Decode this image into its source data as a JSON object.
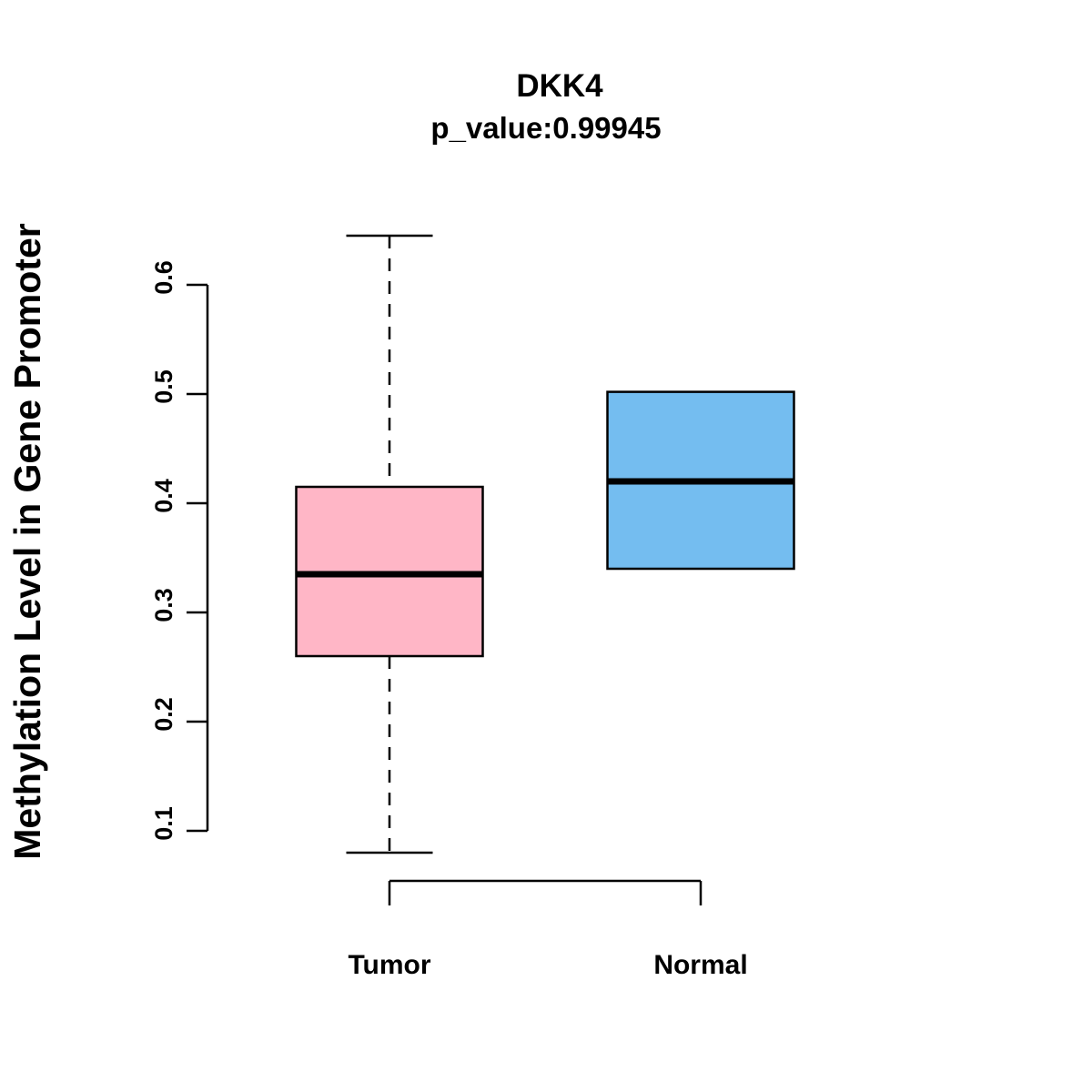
{
  "chart_data": {
    "type": "boxplot",
    "title": "DKK4",
    "subtitle": "p_value:0.99945",
    "ylabel": "Methylation Level in Gene Promoter",
    "categories": [
      "Tumor",
      "Normal"
    ],
    "series": [
      {
        "name": "Tumor",
        "color": "#FFB6C6",
        "whisker_low": 0.08,
        "q1": 0.26,
        "median": 0.335,
        "q3": 0.415,
        "whisker_high": 0.645
      },
      {
        "name": "Normal",
        "color": "#74BDF0",
        "whisker_low": 0.34,
        "q1": 0.34,
        "median": 0.42,
        "q3": 0.502,
        "whisker_high": 0.502
      }
    ],
    "yticks": [
      0.1,
      0.2,
      0.3,
      0.4,
      0.5,
      0.6
    ],
    "ylim": [
      0.055,
      0.665
    ],
    "grid": false,
    "legend": "none",
    "axis_color": "#000000"
  }
}
